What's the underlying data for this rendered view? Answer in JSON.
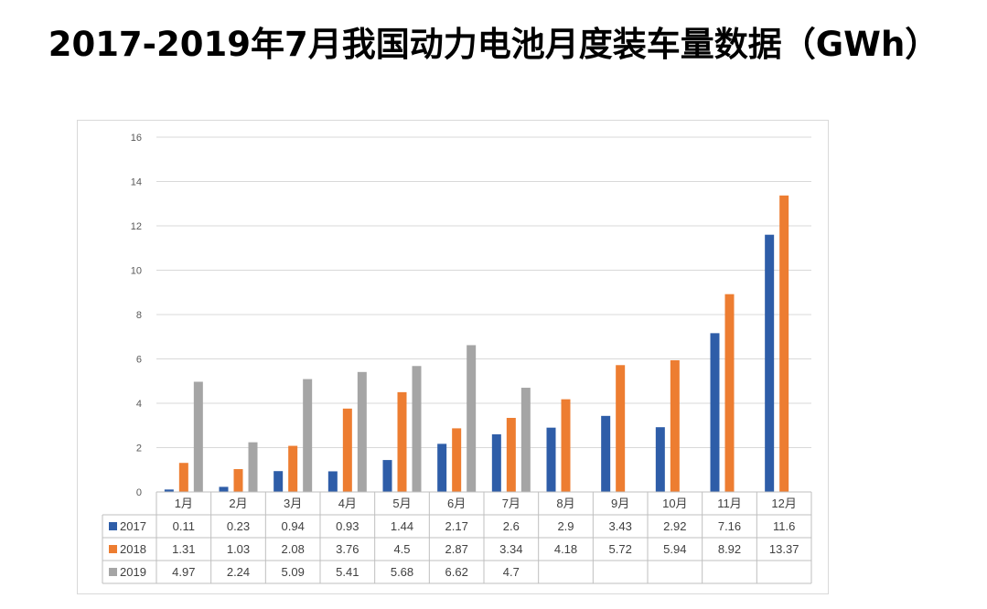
{
  "title": "2017-2019年7月我国动力电池月度装车量数据（GWh）",
  "chart_data": {
    "type": "bar",
    "categories": [
      "1月",
      "2月",
      "3月",
      "4月",
      "5月",
      "6月",
      "7月",
      "8月",
      "9月",
      "10月",
      "11月",
      "12月"
    ],
    "series": [
      {
        "name": "2017",
        "color": "#2e5da8",
        "values": [
          0.11,
          0.23,
          0.94,
          0.93,
          1.44,
          2.17,
          2.6,
          2.9,
          3.43,
          2.92,
          7.16,
          11.6
        ],
        "labels": [
          "0.11",
          "0.23",
          "0.94",
          "0.93",
          "1.44",
          "2.17",
          "2.6",
          "2.9",
          "3.43",
          "2.92",
          "7.16",
          "11.6"
        ]
      },
      {
        "name": "2018",
        "color": "#ed7d31",
        "values": [
          1.31,
          1.03,
          2.08,
          3.76,
          4.5,
          2.87,
          3.34,
          4.18,
          5.72,
          5.94,
          8.92,
          13.37
        ],
        "labels": [
          "1.31",
          "1.03",
          "2.08",
          "3.76",
          "4.5",
          "2.87",
          "3.34",
          "4.18",
          "5.72",
          "5.94",
          "8.92",
          "13.37"
        ]
      },
      {
        "name": "2019",
        "color": "#a5a5a5",
        "values": [
          4.97,
          2.24,
          5.09,
          5.41,
          5.68,
          6.62,
          4.7,
          null,
          null,
          null,
          null,
          null
        ],
        "labels": [
          "4.97",
          "2.24",
          "5.09",
          "5.41",
          "5.68",
          "6.62",
          "4.7",
          "",
          "",
          "",
          "",
          ""
        ]
      }
    ],
    "ylim": [
      0,
      16
    ],
    "yticks": [
      "0",
      "2",
      "4",
      "6",
      "8",
      "10",
      "12",
      "14",
      "16"
    ],
    "grid": true,
    "data_table": true
  }
}
